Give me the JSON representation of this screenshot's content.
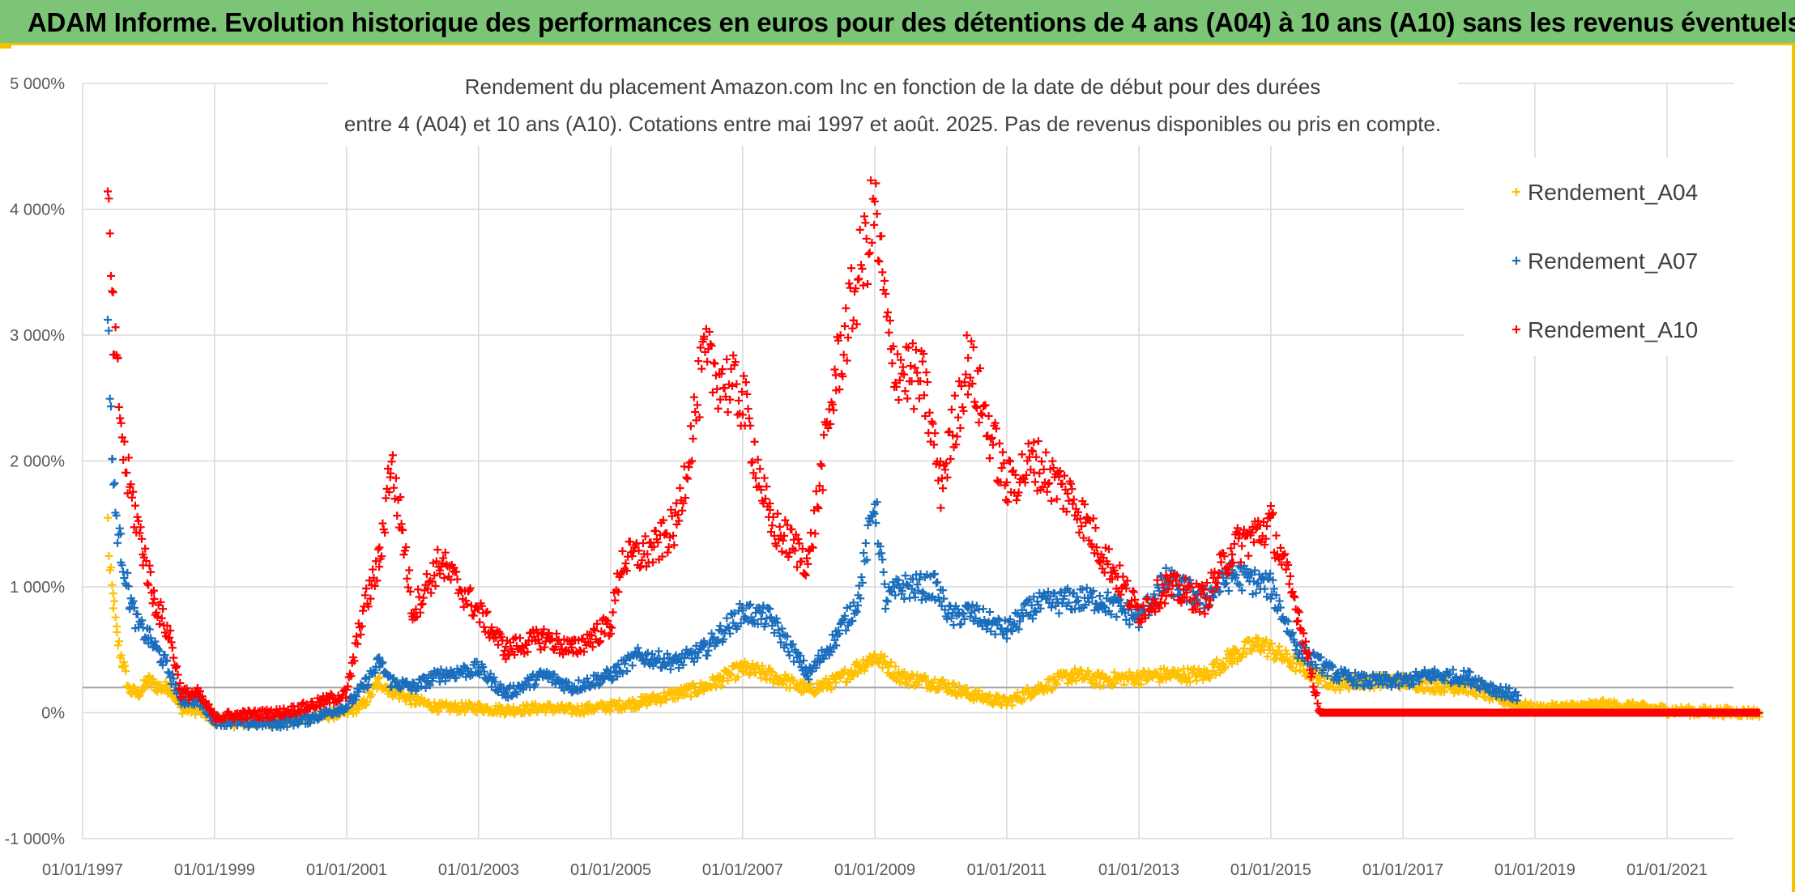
{
  "banner": {
    "title": "ADAM Informe. Evolution historique des performances en euros pour des détentions de 4 ans (A04) à 10 ans (A10) sans les revenus éventuels"
  },
  "chart_data": {
    "type": "scatter",
    "title_line1": "Rendement du placement Amazon.com Inc en fonction de la date de début pour des durées",
    "title_line2": "entre 4 (A04) et 10 ans (A10). Cotations entre mai 1997 et août. 2025. Pas de revenus disponibles ou pris en compte.",
    "xlabel": "",
    "ylabel": "",
    "x_axis_type": "date",
    "xlim": [
      "1997-01-01",
      "2022-06-01"
    ],
    "x_ticks": [
      "01/01/1997",
      "01/01/1999",
      "01/01/2001",
      "01/01/2003",
      "01/01/2005",
      "01/01/2007",
      "01/01/2009",
      "01/01/2011",
      "01/01/2013",
      "01/01/2015",
      "01/01/2017",
      "01/01/2019",
      "01/01/2021"
    ],
    "ylim": [
      -1000,
      5000
    ],
    "y_ticks": [
      -1000,
      0,
      1000,
      2000,
      3000,
      4000,
      5000
    ],
    "y_tick_labels": [
      "-1 000%",
      "0%",
      "1 000%",
      "2 000%",
      "3 000%",
      "4 000%",
      "5 000%"
    ],
    "reference_line_y": 200,
    "grid": true,
    "marker": "+",
    "legend_position": "right",
    "series": [
      {
        "name": "Rendement_A04",
        "color": "#ffc000",
        "points": [
          [
            "1997-05-20",
            1500
          ],
          [
            "1997-06-01",
            1100
          ],
          [
            "1997-06-20",
            900
          ],
          [
            "1997-07-10",
            600
          ],
          [
            "1997-08-10",
            400
          ],
          [
            "1997-09-15",
            180
          ],
          [
            "1997-11-01",
            150
          ],
          [
            "1998-01-01",
            250
          ],
          [
            "1998-03-01",
            200
          ],
          [
            "1998-05-01",
            200
          ],
          [
            "1998-07-01",
            30
          ],
          [
            "1998-10-01",
            20
          ],
          [
            "1999-01-01",
            -60
          ],
          [
            "1999-06-01",
            -80
          ],
          [
            "2000-01-01",
            -60
          ],
          [
            "2000-06-01",
            -40
          ],
          [
            "2001-01-01",
            0
          ],
          [
            "2001-04-01",
            60
          ],
          [
            "2001-07-01",
            250
          ],
          [
            "2001-09-01",
            180
          ],
          [
            "2002-01-01",
            100
          ],
          [
            "2002-06-01",
            40
          ],
          [
            "2003-01-01",
            40
          ],
          [
            "2003-06-01",
            20
          ],
          [
            "2004-01-01",
            40
          ],
          [
            "2004-06-01",
            20
          ],
          [
            "2005-01-01",
            50
          ],
          [
            "2005-06-01",
            80
          ],
          [
            "2006-01-01",
            150
          ],
          [
            "2006-06-01",
            200
          ],
          [
            "2007-01-01",
            350
          ],
          [
            "2007-06-01",
            300
          ],
          [
            "2008-01-01",
            180
          ],
          [
            "2008-06-01",
            250
          ],
          [
            "2009-01-01",
            450
          ],
          [
            "2009-06-01",
            280
          ],
          [
            "2010-01-01",
            230
          ],
          [
            "2010-06-01",
            150
          ],
          [
            "2011-01-01",
            80
          ],
          [
            "2011-06-01",
            180
          ],
          [
            "2012-01-01",
            300
          ],
          [
            "2012-06-01",
            260
          ],
          [
            "2013-01-01",
            280
          ],
          [
            "2013-06-01",
            300
          ],
          [
            "2014-01-01",
            300
          ],
          [
            "2014-06-01",
            450
          ],
          [
            "2014-11-01",
            550
          ],
          [
            "2015-03-01",
            450
          ],
          [
            "2015-09-01",
            300
          ],
          [
            "2016-01-01",
            230
          ],
          [
            "2016-06-01",
            250
          ],
          [
            "2017-01-01",
            250
          ],
          [
            "2017-06-01",
            220
          ],
          [
            "2018-01-01",
            200
          ],
          [
            "2018-06-01",
            120
          ],
          [
            "2019-01-01",
            30
          ],
          [
            "2019-06-01",
            40
          ],
          [
            "2020-01-01",
            60
          ],
          [
            "2020-06-01",
            50
          ],
          [
            "2021-01-01",
            20
          ],
          [
            "2021-06-01",
            10
          ],
          [
            "2022-06-01",
            0
          ]
        ]
      },
      {
        "name": "Rendement_A07",
        "color": "#1a6ebd",
        "points": [
          [
            "1997-05-20",
            3000
          ],
          [
            "1997-06-01",
            2700
          ],
          [
            "1997-06-15",
            2000
          ],
          [
            "1997-07-01",
            1600
          ],
          [
            "1997-08-01",
            1300
          ],
          [
            "1997-09-20",
            900
          ],
          [
            "1997-11-01",
            700
          ],
          [
            "1998-01-01",
            600
          ],
          [
            "1998-04-01",
            400
          ],
          [
            "1998-07-01",
            100
          ],
          [
            "1998-10-01",
            100
          ],
          [
            "1999-01-01",
            -60
          ],
          [
            "1999-06-01",
            -80
          ],
          [
            "2000-01-01",
            -80
          ],
          [
            "2000-06-01",
            -50
          ],
          [
            "2001-01-01",
            50
          ],
          [
            "2001-04-01",
            200
          ],
          [
            "2001-07-01",
            400
          ],
          [
            "2001-09-01",
            250
          ],
          [
            "2002-01-01",
            200
          ],
          [
            "2002-06-01",
            300
          ],
          [
            "2003-01-01",
            350
          ],
          [
            "2003-06-01",
            150
          ],
          [
            "2004-01-01",
            300
          ],
          [
            "2004-06-01",
            200
          ],
          [
            "2005-01-01",
            300
          ],
          [
            "2005-06-01",
            450
          ],
          [
            "2006-01-01",
            400
          ],
          [
            "2006-06-01",
            500
          ],
          [
            "2007-01-01",
            800
          ],
          [
            "2007-06-01",
            750
          ],
          [
            "2008-01-01",
            300
          ],
          [
            "2008-06-01",
            600
          ],
          [
            "2008-10-01",
            900
          ],
          [
            "2009-01-01",
            1700
          ],
          [
            "2009-03-01",
            900
          ],
          [
            "2009-06-01",
            1000
          ],
          [
            "2009-12-01",
            1000
          ],
          [
            "2010-03-01",
            750
          ],
          [
            "2010-06-01",
            800
          ],
          [
            "2011-01-01",
            650
          ],
          [
            "2011-06-01",
            850
          ],
          [
            "2012-01-01",
            900
          ],
          [
            "2012-06-01",
            900
          ],
          [
            "2013-01-01",
            750
          ],
          [
            "2013-06-01",
            1050
          ],
          [
            "2014-01-01",
            900
          ],
          [
            "2014-06-01",
            1100
          ],
          [
            "2015-01-01",
            1000
          ],
          [
            "2015-06-01",
            500
          ],
          [
            "2016-01-01",
            300
          ],
          [
            "2016-06-01",
            250
          ],
          [
            "2017-01-01",
            250
          ],
          [
            "2017-06-01",
            300
          ],
          [
            "2018-01-01",
            280
          ],
          [
            "2018-06-01",
            180
          ],
          [
            "2018-10-01",
            130
          ]
        ]
      },
      {
        "name": "Rendement_A10",
        "color": "#ff0000",
        "points": [
          [
            "1997-05-20",
            3900
          ],
          [
            "1997-06-01",
            3700
          ],
          [
            "1997-06-20",
            3000
          ],
          [
            "1997-07-15",
            2600
          ],
          [
            "1997-08-20",
            2000
          ],
          [
            "1997-10-01",
            1700
          ],
          [
            "1997-12-01",
            1300
          ],
          [
            "1998-02-01",
            900
          ],
          [
            "1998-05-01",
            600
          ],
          [
            "1998-07-01",
            150
          ],
          [
            "1998-10-01",
            150
          ],
          [
            "1999-01-01",
            -30
          ],
          [
            "1999-06-01",
            -20
          ],
          [
            "2000-01-01",
            0
          ],
          [
            "2000-06-01",
            50
          ],
          [
            "2001-01-01",
            150
          ],
          [
            "2001-04-01",
            800
          ],
          [
            "2001-07-01",
            1200
          ],
          [
            "2001-09-01",
            2000
          ],
          [
            "2001-11-01",
            1500
          ],
          [
            "2002-01-01",
            800
          ],
          [
            "2002-06-01",
            1200
          ],
          [
            "2003-01-01",
            800
          ],
          [
            "2003-06-01",
            500
          ],
          [
            "2004-01-01",
            600
          ],
          [
            "2004-06-01",
            500
          ],
          [
            "2005-01-01",
            700
          ],
          [
            "2005-03-01",
            1200
          ],
          [
            "2005-09-01",
            1300
          ],
          [
            "2006-01-01",
            1500
          ],
          [
            "2006-06-01",
            2800
          ],
          [
            "2007-01-01",
            2500
          ],
          [
            "2007-06-01",
            1500
          ],
          [
            "2008-01-01",
            1200
          ],
          [
            "2008-06-01",
            2700
          ],
          [
            "2009-01-01",
            4000
          ],
          [
            "2009-04-01",
            2800
          ],
          [
            "2009-10-01",
            2600
          ],
          [
            "2010-01-01",
            1800
          ],
          [
            "2010-06-01",
            2800
          ],
          [
            "2011-01-01",
            1800
          ],
          [
            "2011-06-01",
            2000
          ],
          [
            "2012-01-01",
            1700
          ],
          [
            "2012-06-01",
            1300
          ],
          [
            "2013-01-01",
            800
          ],
          [
            "2013-06-01",
            1000
          ],
          [
            "2014-01-01",
            900
          ],
          [
            "2014-06-01",
            1300
          ],
          [
            "2015-01-01",
            1500
          ],
          [
            "2015-06-01",
            800
          ],
          [
            "2015-10-01",
            0
          ],
          [
            "2017-01-01",
            0
          ],
          [
            "2019-01-01",
            0
          ],
          [
            "2021-01-01",
            0
          ],
          [
            "2022-06-01",
            0
          ]
        ]
      }
    ]
  }
}
